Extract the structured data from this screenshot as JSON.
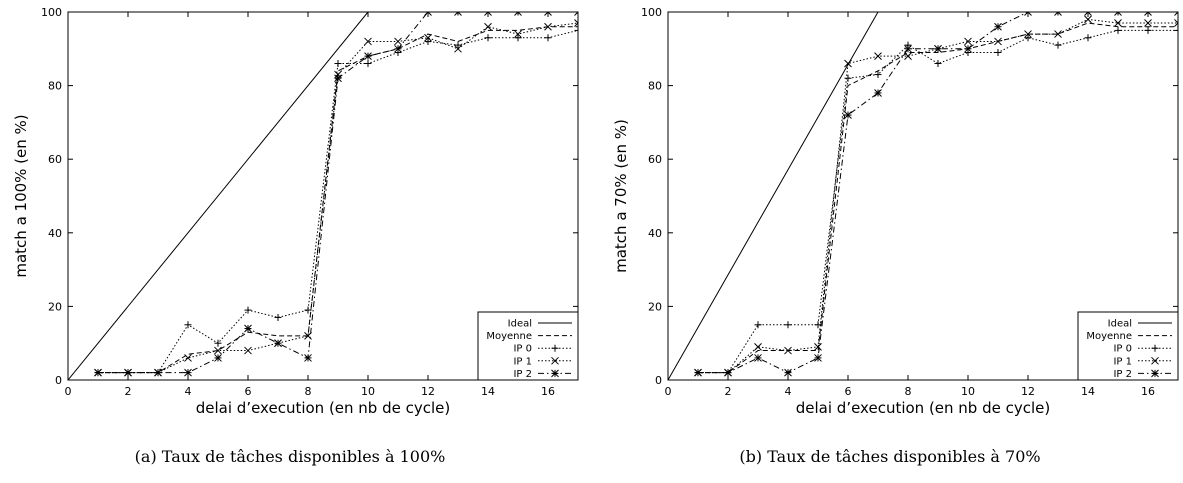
{
  "chart_data": [
    {
      "type": "line",
      "caption": "(a) Taux de tâches disponibles à 100%",
      "xlabel": "delai d’execution (en nb de cycle)",
      "ylabel": "match a 100% (en %)",
      "xlim": [
        0,
        17
      ],
      "ylim": [
        0,
        100
      ],
      "xticks": [
        0,
        2,
        4,
        6,
        8,
        10,
        12,
        14,
        16
      ],
      "yticks": [
        0,
        20,
        40,
        60,
        80,
        100
      ],
      "legend_position": "bottom-right",
      "series": [
        {
          "name": "Ideal",
          "style": "solid",
          "marker": "none",
          "x": [
            0,
            10,
            17
          ],
          "y": [
            0,
            100,
            100
          ]
        },
        {
          "name": "Moyenne",
          "style": "dashed",
          "marker": "none",
          "x": [
            1,
            2,
            3,
            4,
            5,
            6,
            7,
            8,
            9,
            10,
            11,
            12,
            13,
            14,
            15,
            16,
            17
          ],
          "y": [
            2,
            2,
            2,
            7,
            8,
            13,
            12,
            12,
            84,
            88,
            90,
            94,
            92,
            95,
            95,
            96,
            96
          ]
        },
        {
          "name": "IP 0",
          "style": "dotted",
          "marker": "plus",
          "x": [
            1,
            2,
            3,
            4,
            5,
            6,
            7,
            8,
            9,
            10,
            11,
            12,
            13,
            14,
            15,
            16,
            17
          ],
          "y": [
            2,
            2,
            2,
            15,
            10,
            19,
            17,
            19,
            86,
            86,
            89,
            92,
            91,
            93,
            93,
            93,
            95
          ]
        },
        {
          "name": "IP 1",
          "style": "dotted",
          "marker": "cross",
          "x": [
            1,
            2,
            3,
            4,
            5,
            6,
            7,
            8,
            9,
            10,
            11,
            12,
            13,
            14,
            15,
            16,
            17
          ],
          "y": [
            2,
            2,
            2,
            6,
            8,
            8,
            10,
            12,
            83,
            92,
            92,
            93,
            90,
            96,
            94,
            96,
            97
          ]
        },
        {
          "name": "IP 2",
          "style": "dashdot",
          "marker": "star",
          "x": [
            1,
            2,
            3,
            4,
            5,
            6,
            7,
            8,
            9,
            10,
            11,
            12,
            13,
            14,
            15,
            16,
            17
          ],
          "y": [
            2,
            2,
            2,
            2,
            6,
            14,
            10,
            6,
            82,
            88,
            90,
            100,
            100,
            100,
            100,
            100,
            100
          ]
        }
      ]
    },
    {
      "type": "line",
      "caption": "(b) Taux de tâches disponibles à 70%",
      "xlabel": "delai d’execution (en nb de cycle)",
      "ylabel": "match a 70% (en %)",
      "xlim": [
        0,
        17
      ],
      "ylim": [
        0,
        100
      ],
      "xticks": [
        0,
        2,
        4,
        6,
        8,
        10,
        12,
        14,
        16
      ],
      "yticks": [
        0,
        20,
        40,
        60,
        80,
        100
      ],
      "legend_position": "bottom-right",
      "series": [
        {
          "name": "Ideal",
          "style": "solid",
          "marker": "none",
          "x": [
            0,
            7,
            17
          ],
          "y": [
            0,
            100,
            100
          ]
        },
        {
          "name": "Moyenne",
          "style": "dashed",
          "marker": "none",
          "x": [
            1,
            2,
            3,
            4,
            5,
            6,
            7,
            8,
            9,
            10,
            11,
            12,
            13,
            14,
            15,
            16,
            17
          ],
          "y": [
            2,
            2,
            8,
            8,
            8,
            80,
            84,
            89,
            89,
            90,
            92,
            94,
            94,
            97,
            96,
            96,
            96
          ]
        },
        {
          "name": "IP 0",
          "style": "dotted",
          "marker": "plus",
          "x": [
            1,
            2,
            3,
            4,
            5,
            6,
            7,
            8,
            9,
            10,
            11,
            12,
            13,
            14,
            15,
            16,
            17
          ],
          "y": [
            2,
            2,
            15,
            15,
            15,
            82,
            83,
            91,
            86,
            89,
            89,
            93,
            91,
            93,
            95,
            95,
            95
          ]
        },
        {
          "name": "IP 1",
          "style": "dotted",
          "marker": "cross",
          "x": [
            1,
            2,
            3,
            4,
            5,
            6,
            7,
            8,
            9,
            10,
            11,
            12,
            13,
            14,
            15,
            16,
            17
          ],
          "y": [
            2,
            2,
            9,
            8,
            9,
            86,
            88,
            88,
            90,
            92,
            92,
            94,
            94,
            98,
            97,
            97,
            97
          ]
        },
        {
          "name": "IP 2",
          "style": "dashdot",
          "marker": "star",
          "x": [
            1,
            2,
            3,
            4,
            5,
            6,
            7,
            8,
            9,
            10,
            11,
            12,
            13,
            14,
            15,
            16,
            17
          ],
          "y": [
            2,
            2,
            6,
            2,
            6,
            72,
            78,
            90,
            90,
            90,
            96,
            100,
            100,
            100,
            100,
            100,
            100
          ]
        }
      ]
    }
  ]
}
